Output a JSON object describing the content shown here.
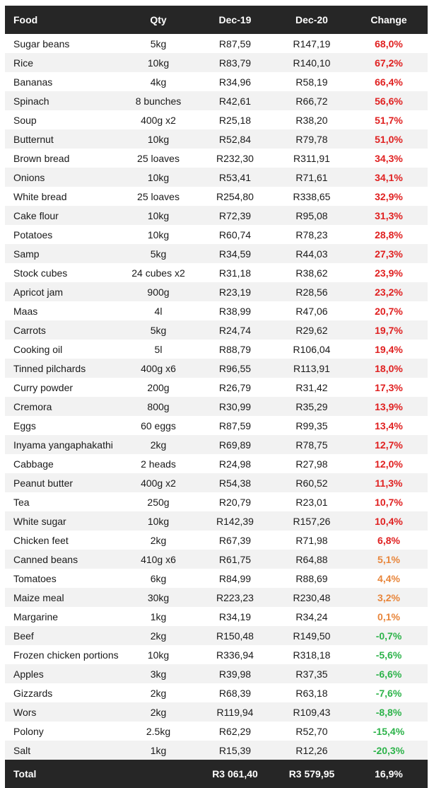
{
  "headers": {
    "food": "Food",
    "qty": "Qty",
    "dec19": "Dec-19",
    "dec20": "Dec-20",
    "change": "Change"
  },
  "colors": {
    "header_bg": "#262626",
    "increase_high": "#e02020",
    "increase_low": "#e8853a",
    "decrease": "#2db34a",
    "row_alt": "#f2f2f2"
  },
  "rows": [
    {
      "food": "Sugar beans",
      "qty": "5kg",
      "dec19": "R87,59",
      "dec20": "R147,19",
      "change": "68,0%",
      "level": "high"
    },
    {
      "food": "Rice",
      "qty": "10kg",
      "dec19": "R83,79",
      "dec20": "R140,10",
      "change": "67,2%",
      "level": "high"
    },
    {
      "food": "Bananas",
      "qty": "4kg",
      "dec19": "R34,96",
      "dec20": "R58,19",
      "change": "66,4%",
      "level": "high"
    },
    {
      "food": "Spinach",
      "qty": "8 bunches",
      "dec19": "R42,61",
      "dec20": "R66,72",
      "change": "56,6%",
      "level": "high"
    },
    {
      "food": "Soup",
      "qty": "400g x2",
      "dec19": "R25,18",
      "dec20": "R38,20",
      "change": "51,7%",
      "level": "high"
    },
    {
      "food": "Butternut",
      "qty": "10kg",
      "dec19": "R52,84",
      "dec20": "R79,78",
      "change": "51,0%",
      "level": "high"
    },
    {
      "food": "Brown bread",
      "qty": "25 loaves",
      "dec19": "R232,30",
      "dec20": "R311,91",
      "change": "34,3%",
      "level": "high"
    },
    {
      "food": "Onions",
      "qty": "10kg",
      "dec19": "R53,41",
      "dec20": "R71,61",
      "change": "34,1%",
      "level": "high"
    },
    {
      "food": "White bread",
      "qty": "25 loaves",
      "dec19": "R254,80",
      "dec20": "R338,65",
      "change": "32,9%",
      "level": "high"
    },
    {
      "food": "Cake flour",
      "qty": "10kg",
      "dec19": "R72,39",
      "dec20": "R95,08",
      "change": "31,3%",
      "level": "high"
    },
    {
      "food": "Potatoes",
      "qty": "10kg",
      "dec19": "R60,74",
      "dec20": "R78,23",
      "change": "28,8%",
      "level": "high"
    },
    {
      "food": "Samp",
      "qty": "5kg",
      "dec19": "R34,59",
      "dec20": "R44,03",
      "change": "27,3%",
      "level": "high"
    },
    {
      "food": "Stock cubes",
      "qty": "24 cubes x2",
      "dec19": "R31,18",
      "dec20": "R38,62",
      "change": "23,9%",
      "level": "high"
    },
    {
      "food": "Apricot jam",
      "qty": "900g",
      "dec19": "R23,19",
      "dec20": "R28,56",
      "change": "23,2%",
      "level": "high"
    },
    {
      "food": "Maas",
      "qty": "4l",
      "dec19": "R38,99",
      "dec20": "R47,06",
      "change": "20,7%",
      "level": "high"
    },
    {
      "food": "Carrots",
      "qty": "5kg",
      "dec19": "R24,74",
      "dec20": "R29,62",
      "change": "19,7%",
      "level": "high"
    },
    {
      "food": "Cooking oil",
      "qty": "5l",
      "dec19": "R88,79",
      "dec20": "R106,04",
      "change": "19,4%",
      "level": "high"
    },
    {
      "food": "Tinned pilchards",
      "qty": "400g x6",
      "dec19": "R96,55",
      "dec20": "R113,91",
      "change": "18,0%",
      "level": "high"
    },
    {
      "food": "Curry powder",
      "qty": "200g",
      "dec19": "R26,79",
      "dec20": "R31,42",
      "change": "17,3%",
      "level": "high"
    },
    {
      "food": "Cremora",
      "qty": "800g",
      "dec19": "R30,99",
      "dec20": "R35,29",
      "change": "13,9%",
      "level": "high"
    },
    {
      "food": "Eggs",
      "qty": "60 eggs",
      "dec19": "R87,59",
      "dec20": "R99,35",
      "change": "13,4%",
      "level": "high"
    },
    {
      "food": "Inyama yangaphakathi",
      "qty": "2kg",
      "dec19": "R69,89",
      "dec20": "R78,75",
      "change": "12,7%",
      "level": "high"
    },
    {
      "food": "Cabbage",
      "qty": "2 heads",
      "dec19": "R24,98",
      "dec20": "R27,98",
      "change": "12,0%",
      "level": "high"
    },
    {
      "food": "Peanut butter",
      "qty": "400g x2",
      "dec19": "R54,38",
      "dec20": "R60,52",
      "change": "11,3%",
      "level": "high"
    },
    {
      "food": "Tea",
      "qty": "250g",
      "dec19": "R20,79",
      "dec20": "R23,01",
      "change": "10,7%",
      "level": "high"
    },
    {
      "food": "White sugar",
      "qty": "10kg",
      "dec19": "R142,39",
      "dec20": "R157,26",
      "change": "10,4%",
      "level": "high"
    },
    {
      "food": "Chicken feet",
      "qty": "2kg",
      "dec19": "R67,39",
      "dec20": "R71,98",
      "change": "6,8%",
      "level": "high"
    },
    {
      "food": "Canned beans",
      "qty": "410g x6",
      "dec19": "R61,75",
      "dec20": "R64,88",
      "change": "5,1%",
      "level": "mid"
    },
    {
      "food": "Tomatoes",
      "qty": "6kg",
      "dec19": "R84,99",
      "dec20": "R88,69",
      "change": "4,4%",
      "level": "mid"
    },
    {
      "food": "Maize meal",
      "qty": "30kg",
      "dec19": "R223,23",
      "dec20": "R230,48",
      "change": "3,2%",
      "level": "mid"
    },
    {
      "food": "Margarine",
      "qty": "1kg",
      "dec19": "R34,19",
      "dec20": "R34,24",
      "change": "0,1%",
      "level": "mid"
    },
    {
      "food": "Beef",
      "qty": "2kg",
      "dec19": "R150,48",
      "dec20": "R149,50",
      "change": "-0,7%",
      "level": "neg"
    },
    {
      "food": "Frozen chicken portions",
      "qty": "10kg",
      "dec19": "R336,94",
      "dec20": "R318,18",
      "change": "-5,6%",
      "level": "neg"
    },
    {
      "food": "Apples",
      "qty": "3kg",
      "dec19": "R39,98",
      "dec20": "R37,35",
      "change": "-6,6%",
      "level": "neg"
    },
    {
      "food": "Gizzards",
      "qty": "2kg",
      "dec19": "R68,39",
      "dec20": "R63,18",
      "change": "-7,6%",
      "level": "neg"
    },
    {
      "food": "Wors",
      "qty": "2kg",
      "dec19": "R119,94",
      "dec20": "R109,43",
      "change": "-8,8%",
      "level": "neg"
    },
    {
      "food": "Polony",
      "qty": "2.5kg",
      "dec19": "R62,29",
      "dec20": "R52,70",
      "change": "-15,4%",
      "level": "neg"
    },
    {
      "food": "Salt",
      "qty": "1kg",
      "dec19": "R15,39",
      "dec20": "R12,26",
      "change": "-20,3%",
      "level": "neg"
    }
  ],
  "total": {
    "label": "Total",
    "qty": "",
    "dec19": "R3 061,40",
    "dec20": "R3 579,95",
    "change": "16,9%"
  }
}
